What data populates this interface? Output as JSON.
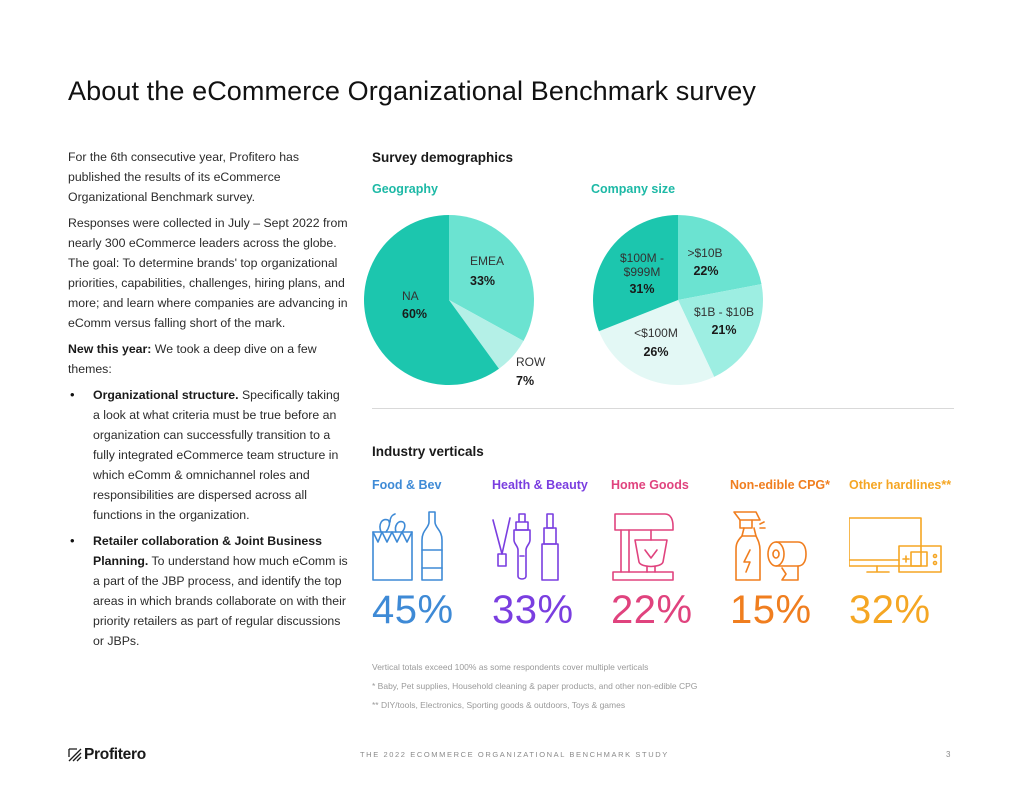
{
  "title": "About the eCommerce Organizational Benchmark survey",
  "intro": {
    "p1": "For the 6th consecutive year, Profitero has published the results of its eCommerce Organizational Benchmark survey.",
    "p2": "Responses were collected in July – Sept 2022 from nearly 300 eCommerce leaders across the globe. The goal: To determine brands' top organizational priorities, capabilities, challenges, hiring plans, and more; and learn where companies are advancing in eComm versus falling short of the mark.",
    "new_label": "New this year:",
    "new_text": " We took a deep dive on a few themes:",
    "bullets": [
      {
        "bold": "Organizational structure.",
        "text": " Specifically taking a look at what criteria must be true before an organization can successfully transition to a fully integrated eCommerce team structure in which eComm & omnichannel roles and responsibilities are dispersed across all functions in the organization."
      },
      {
        "bold": "Retailer collaboration & Joint Business Planning.",
        "text": " To understand how much eComm is a part of the JBP process, and identify the top areas in which brands collaborate on with their priority retailers as part of regular discussions or JBPs."
      }
    ]
  },
  "demographics": {
    "title": "Survey demographics",
    "geography": {
      "label": "Geography"
    },
    "company_size": {
      "label": "Company size"
    }
  },
  "chart_data": [
    {
      "type": "pie",
      "title": "Geography",
      "start_angle_deg": 0,
      "slices": [
        {
          "name": "EMEA",
          "value": 33,
          "label": "33%",
          "color": "#6be3d1"
        },
        {
          "name": "ROW",
          "value": 7,
          "label": "7%",
          "color": "#b4f0e7"
        },
        {
          "name": "NA",
          "value": 60,
          "label": "60%",
          "color": "#1cc6ae"
        }
      ]
    },
    {
      "type": "pie",
      "title": "Company size",
      "start_angle_deg": 0,
      "slices": [
        {
          "name": ">$10B",
          "value": 22,
          "label": "22%",
          "color": "#6be3d1"
        },
        {
          "name": "$1B - $10B",
          "value": 21,
          "label": "21%",
          "color": "#9deee2"
        },
        {
          "name": "<$100M",
          "value": 26,
          "label": "26%",
          "color": "#e3f8f5"
        },
        {
          "name": "$100M - $999M",
          "value": 31,
          "label": "31%",
          "color": "#1cc6ae",
          "name_lines": [
            "$100M -",
            "$999M"
          ]
        }
      ]
    }
  ],
  "industry": {
    "title": "Industry verticals",
    "verticals": [
      {
        "name": "Food & Bev",
        "pct": "45%",
        "color": "#3e8ad6",
        "icon": "grocery-bag-bottle-icon"
      },
      {
        "name": "Health & Beauty",
        "pct": "33%",
        "color": "#7a3ee0",
        "icon": "cosmetics-icon"
      },
      {
        "name": "Home Goods",
        "pct": "22%",
        "color": "#e0437e",
        "icon": "stand-mixer-icon"
      },
      {
        "name": "Non-edible CPG*",
        "pct": "15%",
        "color": "#f07e1f",
        "icon": "spray-bottle-paper-towel-icon"
      },
      {
        "name": "Other hardlines**",
        "pct": "32%",
        "color": "#f5a623",
        "icon": "monitor-game-console-icon"
      }
    ]
  },
  "notes": [
    "Vertical totals exceed 100% as some respondents cover multiple verticals",
    "* Baby, Pet supplies, Household cleaning & paper products, and other non-edible CPG",
    "** DIY/tools, Electronics, Sporting goods & outdoors, Toys & games"
  ],
  "footer": {
    "logo": "Profitero",
    "text": "THE 2022 ECOMMERCE ORGANIZATIONAL BENCHMARK STUDY",
    "page": "3"
  }
}
